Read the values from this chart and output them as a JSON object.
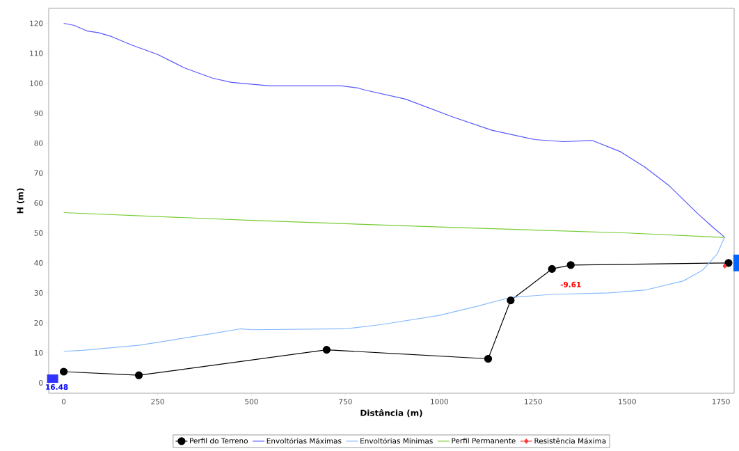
{
  "chart_data": {
    "type": "line",
    "xlabel": "Distância (m)",
    "ylabel": "H (m)",
    "xlim": [
      -40,
      1785
    ],
    "ylim": [
      -3.5,
      125
    ],
    "xticks": [
      0,
      250,
      500,
      750,
      1000,
      1250,
      1500,
      1750
    ],
    "yticks": [
      0,
      10,
      20,
      30,
      40,
      50,
      60,
      70,
      80,
      90,
      100,
      110,
      120
    ],
    "legend": "bottom",
    "series": [
      {
        "name": "Perfil do Terreno",
        "color": "#000000",
        "marker": "circle",
        "x": [
          0,
          200,
          700,
          1130,
          1190,
          1300,
          1350,
          1770
        ],
        "values": [
          3.7,
          2.5,
          11,
          8,
          27.5,
          38,
          39.3,
          40
        ]
      },
      {
        "name": "Envoltórias Máximas",
        "color": "#5555ff",
        "marker": "none",
        "x": [
          0,
          28,
          63,
          92,
          127,
          180,
          250,
          320,
          396,
          447,
          549,
          740,
          783,
          803,
          910,
          1037,
          1140,
          1254,
          1330,
          1407,
          1483,
          1547,
          1610,
          1687,
          1732,
          1759
        ],
        "values": [
          120,
          119.3,
          117.4,
          116.9,
          115.6,
          112.8,
          109.6,
          105.2,
          101.7,
          100.3,
          99.1,
          99.1,
          98.4,
          97.7,
          94.7,
          88.7,
          84.3,
          81.2,
          80.5,
          80.9,
          77.1,
          72,
          66,
          56.6,
          51.5,
          48.7
        ]
      },
      {
        "name": "Envoltórias Mínimas",
        "color": "#88bbff",
        "marker": "none",
        "x": [
          0,
          50,
          200,
          300,
          400,
          470,
          500,
          750,
          850,
          1000,
          1100,
          1190,
          1300,
          1450,
          1550,
          1650,
          1700,
          1740,
          1760
        ],
        "values": [
          10.5,
          10.8,
          12.5,
          14.5,
          16.5,
          18,
          17.7,
          18,
          19.5,
          22.5,
          25.5,
          28.5,
          29.5,
          30,
          31,
          34,
          37.5,
          43,
          48.7
        ]
      },
      {
        "name": "Perfil Permanente",
        "color": "#77cc33",
        "marker": "none",
        "x": [
          0,
          500,
          1000,
          1500,
          1760
        ],
        "values": [
          56.8,
          54.2,
          52,
          50,
          48.5
        ]
      },
      {
        "name": "Resistência Máxima",
        "color": "#ff3333",
        "marker": "diamond",
        "x": [
          1760
        ],
        "values": [
          39
        ]
      }
    ],
    "annotations": [
      "-9.61",
      "16.48"
    ]
  }
}
